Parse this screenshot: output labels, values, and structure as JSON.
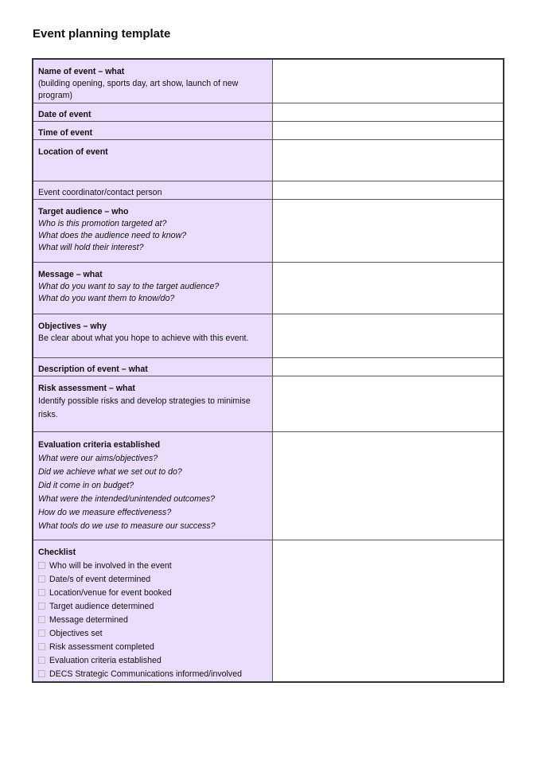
{
  "title": "Event planning template",
  "colors": {
    "label_bg": "#e9ddfb"
  },
  "rows": [
    {
      "heading": "Name of event – what",
      "lines": [
        "(building opening, sports day, art show, launch of new program)"
      ],
      "style": "plain"
    },
    {
      "heading": "Date of event",
      "lines": [],
      "style": "plain"
    },
    {
      "heading": "Time of event",
      "lines": [],
      "style": "plain"
    },
    {
      "heading": "Location of event",
      "lines": [],
      "style": "plain"
    },
    {
      "heading": "",
      "lines": [
        "Event coordinator/contact person"
      ],
      "style": "plain"
    },
    {
      "heading": "Target audience – who",
      "lines": [
        "Who is this promotion targeted at?",
        "What does the audience need to know?",
        "What will hold their interest?"
      ],
      "style": "italic"
    },
    {
      "heading": "Message – what",
      "lines": [
        "What do you want to say to the target audience?",
        "What do you want them to know/do?"
      ],
      "style": "italic"
    },
    {
      "heading": "Objectives – why",
      "lines": [
        "Be clear about what you hope to achieve with this event."
      ],
      "style": "plain"
    },
    {
      "heading": "Description of event – what",
      "lines": [],
      "style": "plain"
    },
    {
      "heading": "Risk assessment – what",
      "lines": [
        "Identify possible risks and develop strategies to minimise risks."
      ],
      "style": "plain"
    },
    {
      "heading": "Evaluation criteria established",
      "lines": [
        "What were our aims/objectives?",
        "Did we achieve what we set out to do?",
        "Did it come in on budget?",
        "What were the intended/unintended outcomes?",
        "How do we measure effectiveness?",
        "What tools do we use to measure our success?"
      ],
      "style": "italic"
    },
    {
      "heading": "Checklist",
      "lines": [
        "Who will be involved in the event",
        "Date/s of event determined",
        "Location/venue for event booked",
        "Target audience determined",
        "Message determined",
        "Objectives set",
        "Risk assessment completed",
        "Evaluation criteria established",
        "DECS Strategic Communications informed/involved"
      ],
      "style": "checklist"
    }
  ]
}
